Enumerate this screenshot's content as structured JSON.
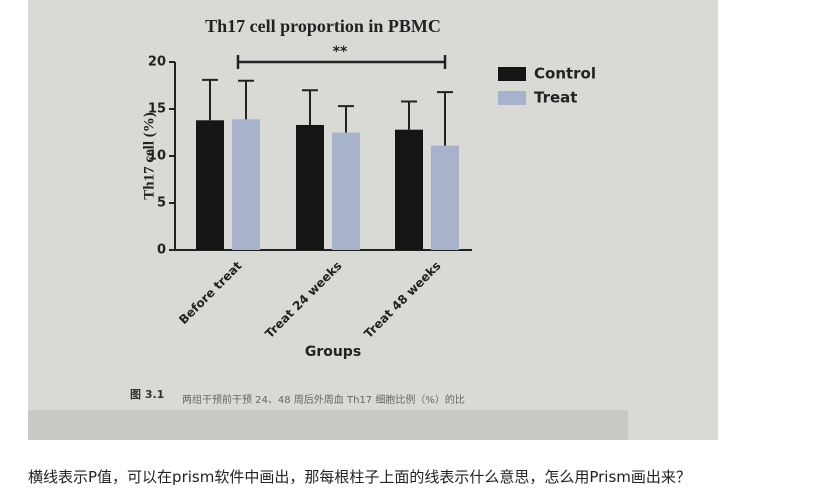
{
  "chart_data": {
    "type": "bar",
    "title": "Th17 cell proportion in PBMC",
    "x_label": "Groups",
    "y_label": "Th17 cell (%)",
    "categories": [
      "Before treat",
      "Treat 24 weeks",
      "Treat 48 weeks"
    ],
    "series": [
      {
        "name": "Control",
        "color": "#151515",
        "values": [
          13.8,
          13.3,
          12.8
        ],
        "errors": [
          4.3,
          3.7,
          3.0
        ]
      },
      {
        "name": "Treat",
        "color": "#a8b2cb",
        "values": [
          13.9,
          12.5,
          11.1
        ],
        "errors": [
          4.1,
          2.8,
          5.7
        ]
      }
    ],
    "ylim": [
      0,
      20
    ],
    "yticks": [
      0,
      5,
      10,
      15,
      20
    ],
    "legend": "right",
    "annotation": "**"
  },
  "figure_caption": {
    "number": "图 3.1",
    "text": "两组干预前干预 24、48 周后外周血 Th17 细胞比例（%）的比"
  },
  "question": "横线表示P值，可以在prism软件中画出，那每根柱子上面的线表示什么意思，怎么用Prism画出来？"
}
